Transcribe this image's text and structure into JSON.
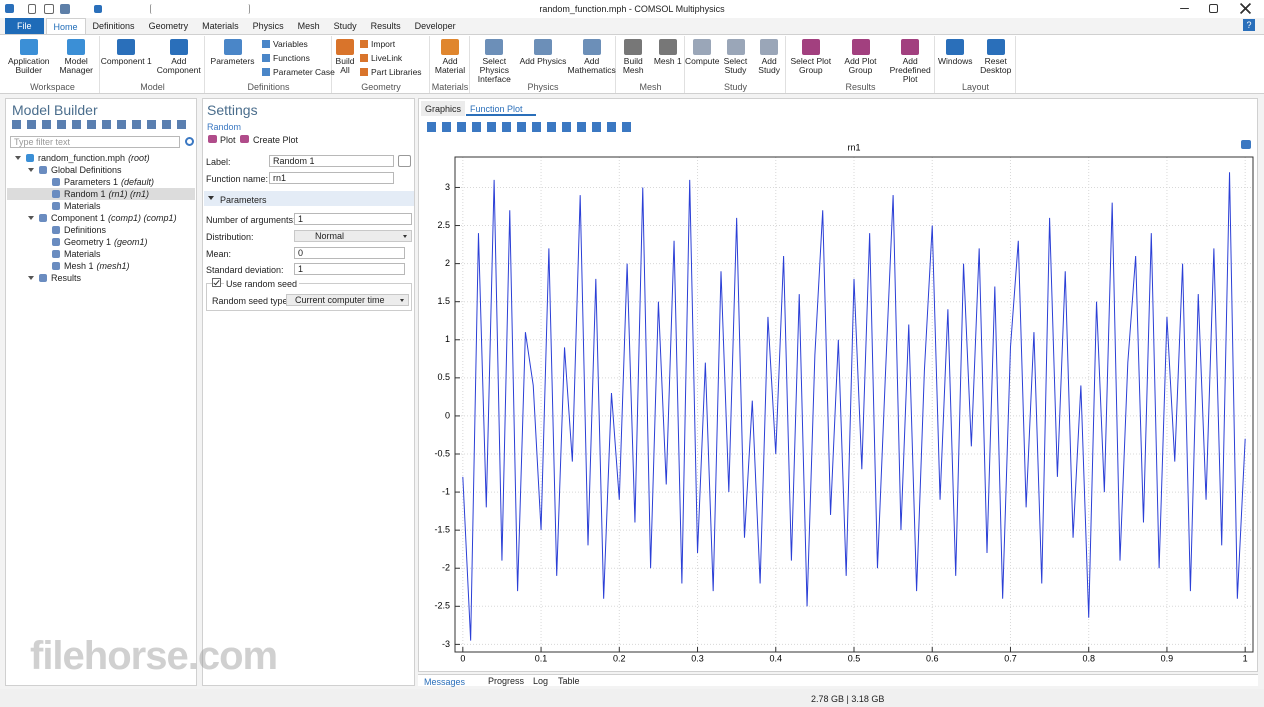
{
  "title_bar": {
    "title": "random_function.mph - COMSOL Multiphysics"
  },
  "ribbon": {
    "tabs": [
      "File",
      "Home",
      "Definitions",
      "Geometry",
      "Materials",
      "Physics",
      "Mesh",
      "Study",
      "Results",
      "Developer"
    ],
    "help": "?",
    "groups": [
      {
        "name": "Workspace",
        "buttons": [
          "Application Builder",
          "Model Manager"
        ]
      },
      {
        "name": "Model",
        "buttons": [
          "Component 1",
          "Add Component"
        ]
      },
      {
        "name": "Definitions",
        "buttons": [
          "Parameters"
        ],
        "items": [
          "Variables",
          "Functions",
          "Parameter Case"
        ]
      },
      {
        "name": "Geometry",
        "buttons": [
          "Build All"
        ],
        "items": [
          "Import",
          "LiveLink",
          "Part Libraries"
        ]
      },
      {
        "name": "Materials",
        "buttons": [
          "Add Material"
        ]
      },
      {
        "name": "Physics",
        "buttons": [
          "Select Physics Interface",
          "Add Physics",
          "Add Mathematics"
        ]
      },
      {
        "name": "Mesh",
        "buttons": [
          "Build Mesh",
          "Mesh 1"
        ]
      },
      {
        "name": "Study",
        "buttons": [
          "Compute",
          "Select Study",
          "Add Study"
        ]
      },
      {
        "name": "Results",
        "buttons": [
          "Select Plot Group",
          "Add Plot Group",
          "Add Predefined Plot"
        ]
      },
      {
        "name": "Layout",
        "buttons": [
          "Windows",
          "Reset Desktop"
        ]
      }
    ]
  },
  "model_builder": {
    "title": "Model Builder",
    "filter_placeholder": "Type filter text",
    "tree": {
      "label": "random_function.mph",
      "tag": "(root)",
      "children": [
        {
          "label": "Global Definitions",
          "children": [
            {
              "label": "Parameters 1",
              "tag": "(default)"
            },
            {
              "label": "Random 1",
              "tag": "(rn1) (rn1)"
            },
            {
              "label": "Materials"
            }
          ]
        },
        {
          "label": "Component 1",
          "tag": "(comp1) (comp1)",
          "children": [
            {
              "label": "Definitions"
            },
            {
              "label": "Geometry 1",
              "tag": "(geom1)"
            },
            {
              "label": "Materials"
            },
            {
              "label": "Mesh 1",
              "tag": "(mesh1)"
            }
          ]
        },
        {
          "label": "Results",
          "children": []
        }
      ]
    }
  },
  "settings": {
    "title": "Settings",
    "subtitle": "Random",
    "actions": [
      "Plot",
      "Create Plot"
    ],
    "label": {
      "name": "Label:",
      "value": "Random 1"
    },
    "function_name": {
      "name": "Function name:",
      "value": "rn1"
    },
    "section": "Parameters",
    "fields": [
      {
        "name": "Number of arguments:",
        "value": 1
      },
      {
        "name": "Distribution:",
        "value": "Normal"
      },
      {
        "name": "Mean:",
        "value": 0
      },
      {
        "name": "Standard deviation:",
        "value": 1
      }
    ],
    "seed": {
      "checkbox": "Use random seed",
      "name": "Random seed type:",
      "value": "Current computer time"
    }
  },
  "graphics": {
    "tabs": [
      "Graphics",
      "Function Plot"
    ]
  },
  "chart_data": {
    "type": "line",
    "title": "rn1",
    "color": "#2b3fd6",
    "grid": true,
    "xlim": [
      -0.01,
      1.01
    ],
    "ylim": [
      -3.1,
      3.4
    ],
    "xticks": [
      0,
      0.1,
      0.2,
      0.3,
      0.4,
      0.5,
      0.6,
      0.7,
      0.8,
      0.9,
      1
    ],
    "yticks": [
      -3,
      -2.5,
      -2,
      -1.5,
      -1,
      -0.5,
      0,
      0.5,
      1,
      1.5,
      2,
      2.5,
      3
    ],
    "x": [
      0,
      0.01,
      0.02,
      0.03,
      0.04,
      0.05,
      0.06,
      0.07,
      0.08,
      0.09,
      0.1,
      0.11,
      0.12,
      0.13,
      0.14,
      0.15,
      0.16,
      0.17,
      0.18,
      0.19,
      0.2,
      0.21,
      0.22,
      0.23,
      0.24,
      0.25,
      0.26,
      0.27,
      0.28,
      0.29,
      0.3,
      0.31,
      0.32,
      0.33,
      0.34,
      0.35,
      0.36,
      0.37,
      0.38,
      0.39,
      0.4,
      0.41,
      0.42,
      0.43,
      0.44,
      0.45,
      0.46,
      0.47,
      0.48,
      0.49,
      0.5,
      0.51,
      0.52,
      0.53,
      0.54,
      0.55,
      0.56,
      0.57,
      0.58,
      0.59,
      0.6,
      0.61,
      0.62,
      0.63,
      0.64,
      0.65,
      0.66,
      0.67,
      0.68,
      0.69,
      0.7,
      0.71,
      0.72,
      0.73,
      0.74,
      0.75,
      0.76,
      0.77,
      0.78,
      0.79,
      0.8,
      0.81,
      0.82,
      0.83,
      0.84,
      0.85,
      0.86,
      0.87,
      0.88,
      0.89,
      0.9,
      0.91,
      0.92,
      0.93,
      0.94,
      0.95,
      0.96,
      0.97,
      0.98,
      0.99,
      1
    ],
    "values": [
      -0.8,
      -2.95,
      2.4,
      -1.2,
      3.1,
      -1.9,
      2.7,
      -2.3,
      1.1,
      0.4,
      -1.5,
      2.2,
      -2.1,
      0.9,
      -0.6,
      2.9,
      -1.7,
      1.8,
      -2.4,
      0.3,
      -1.1,
      2.0,
      -1.4,
      3.0,
      -2.0,
      1.5,
      -0.9,
      2.3,
      -2.2,
      3.1,
      -1.8,
      0.7,
      -2.3,
      1.9,
      -1.0,
      2.6,
      -1.6,
      0.2,
      -2.2,
      1.3,
      -0.5,
      2.1,
      -1.9,
      1.6,
      -2.5,
      0.8,
      2.7,
      -1.3,
      1.0,
      -2.1,
      1.8,
      -0.7,
      2.4,
      -2.0,
      0.5,
      2.9,
      -1.5,
      1.2,
      -2.3,
      0.6,
      2.5,
      -1.1,
      1.4,
      -2.1,
      2.0,
      -0.4,
      2.2,
      -1.8,
      1.7,
      -2.4,
      0.9,
      2.3,
      -1.2,
      1.1,
      -2.2,
      2.6,
      -0.8,
      1.9,
      -1.6,
      0.4,
      -2.65,
      1.5,
      -1.0,
      2.8,
      -1.9,
      0.7,
      2.1,
      -1.4,
      2.4,
      -2.0,
      1.3,
      -0.6,
      2.0,
      -2.3,
      1.6,
      -1.1,
      2.2,
      -1.7,
      3.2,
      -2.4,
      -0.3
    ]
  },
  "bottom_tabs": [
    "Messages",
    "Progress",
    "Log",
    "Table"
  ],
  "status": "2.78 GB | 3.18 GB",
  "watermark": "filehorse.com"
}
